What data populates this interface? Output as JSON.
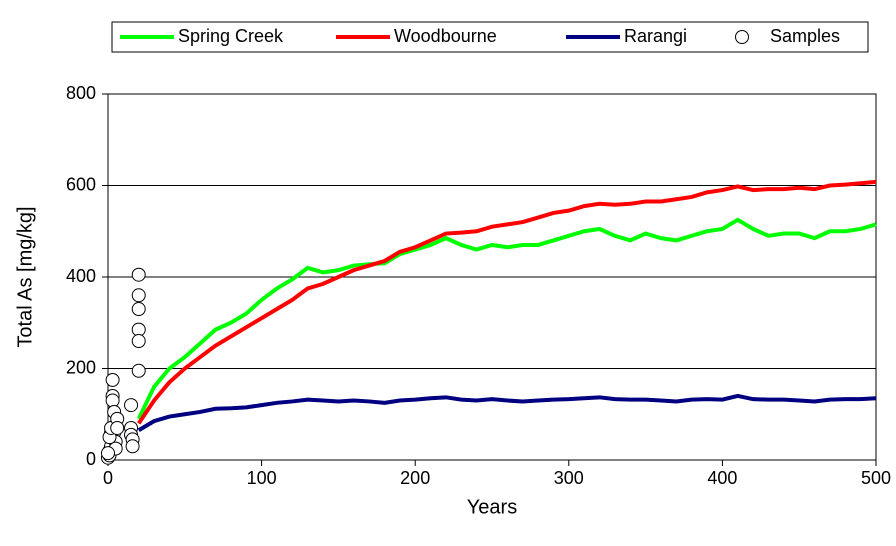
{
  "chart_data": {
    "type": "line",
    "xlabel": "Years",
    "ylabel": "Total As [mg/kg]",
    "xlim": [
      0,
      500
    ],
    "ylim": [
      0,
      800
    ],
    "xticks": [
      0,
      100,
      200,
      300,
      400,
      500
    ],
    "yticks": [
      0,
      200,
      400,
      600,
      800
    ],
    "grid": true,
    "legend": "top",
    "x": [
      20,
      30,
      40,
      50,
      60,
      70,
      80,
      90,
      100,
      110,
      120,
      130,
      140,
      150,
      160,
      170,
      180,
      190,
      200,
      210,
      220,
      230,
      240,
      250,
      260,
      270,
      280,
      290,
      300,
      310,
      320,
      330,
      340,
      350,
      360,
      370,
      380,
      390,
      400,
      410,
      420,
      430,
      440,
      450,
      460,
      470,
      480,
      490,
      500
    ],
    "series": [
      {
        "name": "Spring Creek",
        "color": "#00ff00",
        "values": [
          90,
          160,
          200,
          225,
          255,
          285,
          300,
          320,
          350,
          375,
          395,
          420,
          410,
          415,
          425,
          428,
          430,
          450,
          460,
          470,
          485,
          470,
          460,
          470,
          465,
          470,
          470,
          480,
          490,
          500,
          505,
          490,
          480,
          495,
          485,
          480,
          490,
          500,
          505,
          525,
          505,
          490,
          495,
          495,
          485,
          500,
          500,
          505,
          515
        ]
      },
      {
        "name": "Woodbourne",
        "color": "#ff0000",
        "values": [
          80,
          130,
          170,
          200,
          225,
          250,
          270,
          290,
          310,
          330,
          350,
          375,
          385,
          400,
          415,
          425,
          435,
          455,
          465,
          480,
          495,
          497,
          500,
          510,
          515,
          520,
          530,
          540,
          545,
          555,
          560,
          558,
          560,
          565,
          565,
          570,
          575,
          585,
          590,
          598,
          590,
          592,
          592,
          595,
          592,
          600,
          602,
          605,
          608
        ]
      },
      {
        "name": "Rarangi",
        "color": "#000080",
        "values": [
          65,
          85,
          95,
          100,
          105,
          112,
          113,
          115,
          120,
          125,
          128,
          132,
          130,
          128,
          130,
          128,
          125,
          130,
          132,
          135,
          137,
          132,
          130,
          133,
          130,
          128,
          130,
          132,
          133,
          135,
          137,
          133,
          132,
          132,
          130,
          128,
          132,
          133,
          132,
          140,
          133,
          132,
          132,
          130,
          128,
          132,
          133,
          133,
          135
        ]
      },
      {
        "name": "Samples",
        "type": "scatter",
        "color": "#000000",
        "x": [
          0,
          1,
          1,
          2,
          2,
          3,
          3,
          3,
          4,
          4,
          5,
          5,
          0,
          1,
          2,
          6,
          6,
          15,
          15,
          15,
          16,
          16,
          20,
          20,
          20,
          20,
          20,
          20
        ],
        "values": [
          5,
          10,
          20,
          30,
          60,
          175,
          140,
          130,
          105,
          60,
          40,
          25,
          15,
          50,
          70,
          90,
          70,
          120,
          70,
          55,
          45,
          30,
          405,
          360,
          330,
          285,
          260,
          195
        ]
      }
    ]
  }
}
